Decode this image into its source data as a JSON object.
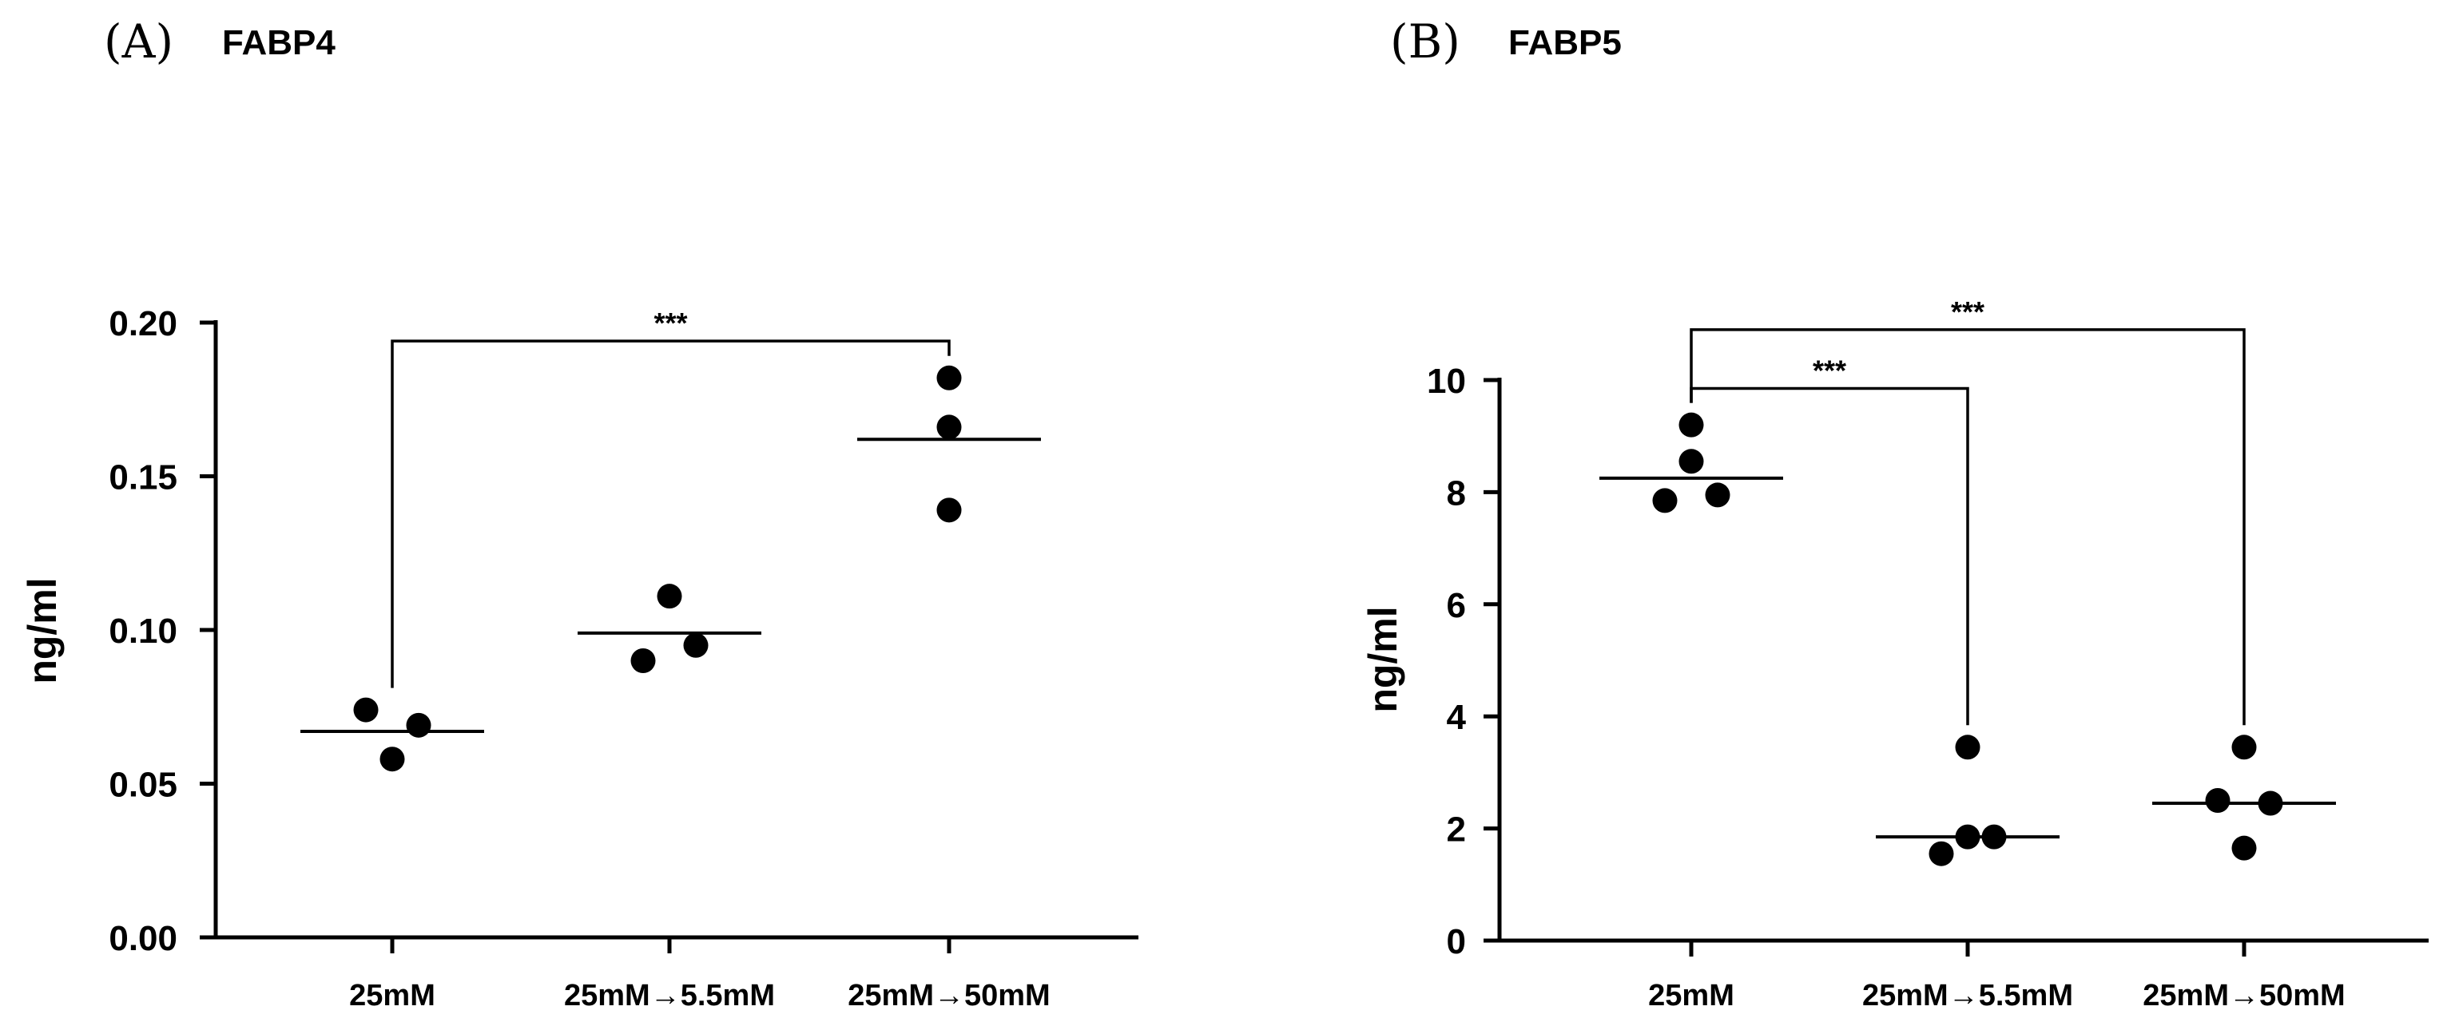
{
  "chart_data": [
    {
      "type": "scatter",
      "panel_label": "(A)",
      "title": "FABP4",
      "ylabel": "ng/ml",
      "xlabel": "",
      "ylim": [
        0,
        0.2
      ],
      "yticks": [
        {
          "value": 0.0,
          "label": "0.00"
        },
        {
          "value": 0.05,
          "label": "0.05"
        },
        {
          "value": 0.1,
          "label": "0.10"
        },
        {
          "value": 0.15,
          "label": "0.15"
        },
        {
          "value": 0.2,
          "label": "0.20"
        }
      ],
      "categories": [
        "25mM",
        "25mM→5.5mM",
        "25mM→50mM"
      ],
      "groups": [
        {
          "category": "25mM",
          "mean": 0.067,
          "points": [
            {
              "value": 0.074,
              "offset": -0.3
            },
            {
              "value": 0.069,
              "offset": 0.3
            },
            {
              "value": 0.058,
              "offset": 0.0
            }
          ]
        },
        {
          "category": "25mM→5.5mM",
          "mean": 0.099,
          "points": [
            {
              "value": 0.111,
              "offset": 0.0
            },
            {
              "value": 0.095,
              "offset": 0.3
            },
            {
              "value": 0.09,
              "offset": -0.3
            }
          ]
        },
        {
          "category": "25mM→50mM",
          "mean": 0.162,
          "points": [
            {
              "value": 0.182,
              "offset": 0.0
            },
            {
              "value": 0.166,
              "offset": 0.0
            },
            {
              "value": 0.139,
              "offset": 0.0
            }
          ]
        }
      ],
      "significance": [
        {
          "from": 0,
          "to": 2,
          "level_value": 0.194,
          "label": "***"
        }
      ]
    },
    {
      "type": "scatter",
      "panel_label": "(B)",
      "title": "FABP5",
      "ylabel": "ng/ml",
      "xlabel": "",
      "ylim": [
        0,
        10
      ],
      "yticks": [
        {
          "value": 0,
          "label": "0"
        },
        {
          "value": 2,
          "label": "2"
        },
        {
          "value": 4,
          "label": "4"
        },
        {
          "value": 6,
          "label": "6"
        },
        {
          "value": 8,
          "label": "8"
        },
        {
          "value": 10,
          "label": "10"
        }
      ],
      "categories": [
        "25mM",
        "25mM→5.5mM",
        "25mM→50mM"
      ],
      "groups": [
        {
          "category": "25mM",
          "mean": 8.25,
          "points": [
            {
              "value": 9.2,
              "offset": 0.0
            },
            {
              "value": 8.55,
              "offset": 0.0
            },
            {
              "value": 7.85,
              "offset": -0.3
            },
            {
              "value": 7.95,
              "offset": 0.3
            }
          ]
        },
        {
          "category": "25mM→5.5mM",
          "mean": 1.85,
          "points": [
            {
              "value": 3.45,
              "offset": 0.0
            },
            {
              "value": 1.85,
              "offset": 0.0
            },
            {
              "value": 1.85,
              "offset": 0.3
            },
            {
              "value": 1.55,
              "offset": -0.3
            }
          ]
        },
        {
          "category": "25mM→50mM",
          "mean": 2.45,
          "points": [
            {
              "value": 3.45,
              "offset": 0.0
            },
            {
              "value": 2.5,
              "offset": -0.3
            },
            {
              "value": 2.45,
              "offset": 0.3
            },
            {
              "value": 1.65,
              "offset": 0.0
            }
          ]
        }
      ],
      "significance": [
        {
          "from": 0,
          "to": 1,
          "level_value": 9.85,
          "label": "***"
        },
        {
          "from": 0,
          "to": 2,
          "level_value": 10.9,
          "label": "***"
        }
      ]
    }
  ]
}
